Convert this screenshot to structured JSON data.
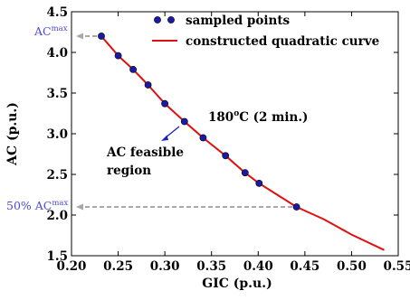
{
  "chart_data": {
    "type": "scatter",
    "xlabel": "GIC (p.u.)",
    "ylabel": "AC (p.u.)",
    "xlim": [
      0.2,
      0.55
    ],
    "ylim": [
      1.5,
      4.5
    ],
    "xticks": [
      "0.20",
      "0.25",
      "0.30",
      "0.35",
      "0.40",
      "0.45",
      "0.50",
      "0.55"
    ],
    "yticks": [
      "1.5",
      "2.0",
      "2.5",
      "3.0",
      "3.5",
      "4.0",
      "4.5"
    ],
    "legend_position": "top-right",
    "series": [
      {
        "name": "sampled points",
        "kind": "points",
        "color": "#1a1aa8",
        "x": [
          0.232,
          0.25,
          0.266,
          0.282,
          0.3,
          0.321,
          0.341,
          0.365,
          0.386,
          0.401,
          0.441
        ],
        "y": [
          4.2,
          3.96,
          3.79,
          3.6,
          3.37,
          3.15,
          2.95,
          2.73,
          2.52,
          2.39,
          2.1
        ]
      },
      {
        "name": "constructed quadratic curve",
        "kind": "line",
        "color": "#e01010",
        "x": [
          0.232,
          0.25,
          0.266,
          0.282,
          0.3,
          0.321,
          0.341,
          0.365,
          0.386,
          0.401,
          0.441,
          0.47,
          0.5,
          0.535
        ],
        "y": [
          4.2,
          3.96,
          3.79,
          3.6,
          3.37,
          3.15,
          2.95,
          2.73,
          2.52,
          2.39,
          2.1,
          1.95,
          1.76,
          1.57
        ]
      }
    ],
    "annotations": {
      "temp_label": "180°C (2 min.)",
      "temp_main": "180",
      "temp_degree": "o",
      "temp_rest": "C (2 min.)",
      "region_line1": "AC feasible",
      "region_line2": "region",
      "acmax_main": "AC",
      "acmax_sup": "max",
      "acmax_y": 4.2,
      "half_prefix": "50% AC",
      "half_sup": "max",
      "half_y": 2.1,
      "half_x": 0.441
    },
    "colors": {
      "reference_line": "#a8a8a8",
      "arrow": "#2020c0",
      "side_label": "#4b4bd6"
    }
  }
}
